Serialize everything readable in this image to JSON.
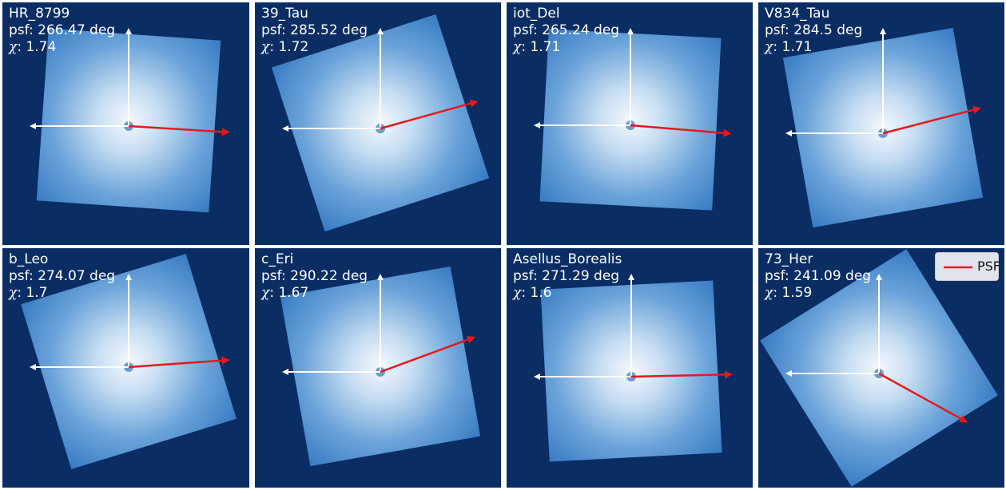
{
  "panels": [
    {
      "name": "HR_8799",
      "psf_label": "psf: 266.47 deg",
      "chi_label": "1.74",
      "psf_angle_deg": 266.47
    },
    {
      "name": "39_Tau",
      "psf_label": "psf: 285.52 deg",
      "chi_label": "1.72",
      "psf_angle_deg": 285.52
    },
    {
      "name": "iot_Del",
      "psf_label": "psf: 265.24 deg",
      "chi_label": "1.71",
      "psf_angle_deg": 265.24
    },
    {
      "name": "V834_Tau",
      "psf_label": "psf: 284.5 deg",
      "chi_label": "1.71",
      "psf_angle_deg": 284.5
    },
    {
      "name": "b_Leo",
      "psf_label": "psf: 274.07 deg",
      "chi_label": "1.7",
      "psf_angle_deg": 274.07
    },
    {
      "name": "c_Eri",
      "psf_label": "psf: 290.22 deg",
      "chi_label": "1.67",
      "psf_angle_deg": 290.22
    },
    {
      "name": "Asellus_Borealis",
      "psf_label": "psf: 271.29 deg",
      "chi_label": "1.6",
      "psf_angle_deg": 271.29
    },
    {
      "name": "73_Her",
      "psf_label": "psf: 241.09 deg",
      "chi_label": "1.59",
      "psf_angle_deg": 241.09
    }
  ],
  "chi_symbol": "χ",
  "legend": {
    "label": "PSF"
  },
  "colors": {
    "background": "#0a2d64",
    "psf_arrow": "#e41a1c",
    "axis_arrow": "#ffffff",
    "image_core": "#f4f8fd",
    "image_edge": "#2f74bf"
  }
}
